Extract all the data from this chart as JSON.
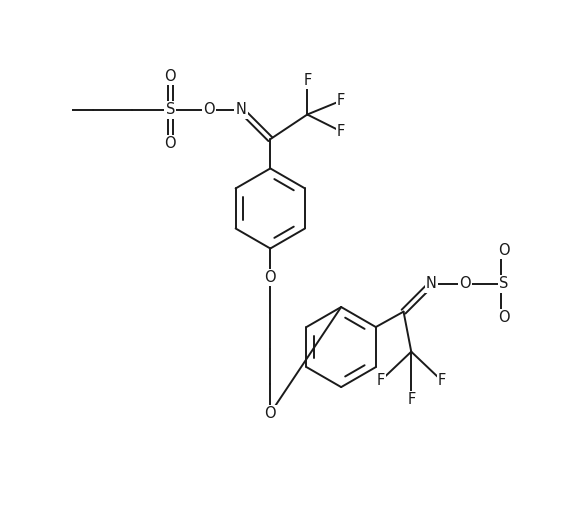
{
  "bg_color": "#ffffff",
  "line_color": "#1a1a1a",
  "lw": 1.4,
  "fs": 10.5,
  "figsize": [
    5.62,
    5.18
  ],
  "dpi": 100,
  "xlim": [
    0,
    562
  ],
  "ylim": [
    0,
    518
  ]
}
